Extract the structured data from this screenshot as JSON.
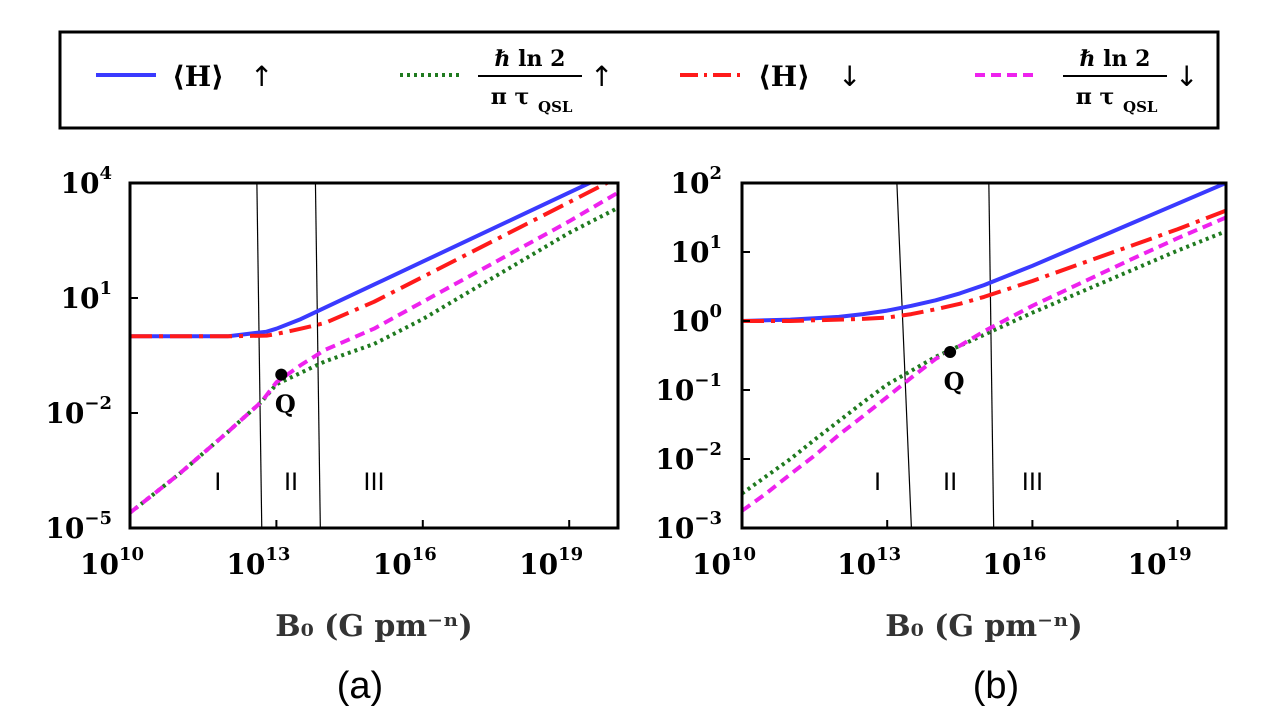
{
  "legend": {
    "items": [
      {
        "series": "H_up",
        "label": "⟨H⟩",
        "arrow": "↑",
        "color": "#3a3aff",
        "dash": "solid"
      },
      {
        "series": "QSL_up",
        "frac_top": "ℏ ln 2",
        "frac_bottom": "π τ",
        "frac_sub": "QSL",
        "arrow": "↑",
        "color": "#1f7a1f",
        "dash": "dotted"
      },
      {
        "series": "H_down",
        "label": "⟨H⟩",
        "arrow": "↓",
        "color": "#ff1a1a",
        "dash": "dashdot"
      },
      {
        "series": "QSL_down",
        "frac_top": "ℏ ln 2",
        "frac_bottom": "π τ",
        "frac_sub": "QSL",
        "arrow": "↓",
        "color": "#ee22ee",
        "dash": "dashed"
      }
    ]
  },
  "chart_data": [
    {
      "type": "line",
      "panel": "(a)",
      "xlabel": "B₀ (G pm⁻ⁿ)",
      "xscale": "log",
      "yscale": "log",
      "xlim_exp": [
        10,
        20
      ],
      "ylim_exp": [
        -5,
        4
      ],
      "xticks": [
        {
          "base": "10",
          "exp": "10",
          "v": 10
        },
        {
          "base": "10",
          "exp": "13",
          "v": 13
        },
        {
          "base": "10",
          "exp": "16",
          "v": 16
        },
        {
          "base": "10",
          "exp": "19",
          "v": 19
        }
      ],
      "yticks": [
        {
          "base": "10",
          "exp": "4",
          "v": 4
        },
        {
          "base": "10",
          "exp": "1",
          "v": 1
        },
        {
          "base": "10",
          "exp": "−2",
          "v": -2
        },
        {
          "base": "10",
          "exp": "−5",
          "v": -5
        }
      ],
      "boundaries": [
        {
          "x_bottom": 12.7,
          "x_top": 12.6
        },
        {
          "x_bottom": 13.9,
          "x_top": 13.8
        }
      ],
      "regions": [
        {
          "label": "I",
          "x": 11.8
        },
        {
          "label": "II",
          "x": 13.3
        },
        {
          "label": "III",
          "x": 15.0
        }
      ],
      "point": {
        "label": "Q",
        "x": 13.1,
        "y": -1.0
      },
      "series": [
        {
          "name": "H_up",
          "x": [
            10,
            11,
            12,
            12.8,
            13.0,
            13.5,
            14,
            15,
            16,
            17,
            18,
            19,
            20
          ],
          "y": [
            0.0,
            0.0,
            0.0,
            0.12,
            0.2,
            0.45,
            0.75,
            1.35,
            1.95,
            2.55,
            3.15,
            3.75,
            4.35
          ]
        },
        {
          "name": "H_down",
          "x": [
            10,
            11,
            12,
            12.8,
            13.0,
            13.5,
            14,
            15,
            16,
            17,
            18,
            19,
            20
          ],
          "y": [
            0.0,
            0.0,
            0.0,
            0.02,
            0.06,
            0.2,
            0.35,
            0.9,
            1.55,
            2.2,
            2.85,
            3.5,
            4.15
          ]
        },
        {
          "name": "QSL_up",
          "x": [
            10,
            11,
            12,
            12.7,
            13.0,
            13.5,
            14,
            15,
            16,
            17,
            18,
            19,
            20
          ],
          "y": [
            -4.6,
            -3.6,
            -2.5,
            -1.7,
            -1.25,
            -0.95,
            -0.65,
            -0.2,
            0.45,
            1.2,
            1.95,
            2.7,
            3.35
          ]
        },
        {
          "name": "QSL_down",
          "x": [
            10,
            11,
            12,
            12.7,
            13.0,
            13.5,
            14,
            15,
            16,
            17,
            18,
            19,
            20
          ],
          "y": [
            -4.6,
            -3.6,
            -2.5,
            -1.7,
            -1.2,
            -0.75,
            -0.35,
            0.2,
            0.9,
            1.6,
            2.3,
            3.0,
            3.75
          ]
        }
      ]
    },
    {
      "type": "line",
      "panel": "(b)",
      "xlabel": "B₀ (G pm⁻ⁿ)",
      "xscale": "log",
      "yscale": "log",
      "xlim_exp": [
        10,
        20
      ],
      "ylim_exp": [
        -3,
        2
      ],
      "xticks": [
        {
          "base": "10",
          "exp": "10",
          "v": 10
        },
        {
          "base": "10",
          "exp": "13",
          "v": 13
        },
        {
          "base": "10",
          "exp": "16",
          "v": 16
        },
        {
          "base": "10",
          "exp": "19",
          "v": 19
        }
      ],
      "yticks": [
        {
          "base": "10",
          "exp": "2",
          "v": 2
        },
        {
          "base": "10",
          "exp": "1",
          "v": 1
        },
        {
          "base": "10",
          "exp": "0",
          "v": 0
        },
        {
          "base": "10",
          "exp": "−1",
          "v": -1
        },
        {
          "base": "10",
          "exp": "−2",
          "v": -2
        },
        {
          "base": "10",
          "exp": "−3",
          "v": -3
        }
      ],
      "boundaries": [
        {
          "x_bottom": 13.5,
          "x_top": 13.2
        },
        {
          "x_bottom": 15.2,
          "x_top": 15.1
        }
      ],
      "regions": [
        {
          "label": "I",
          "x": 12.8
        },
        {
          "label": "II",
          "x": 14.3
        },
        {
          "label": "III",
          "x": 16.0
        }
      ],
      "point": {
        "label": "Q",
        "x": 14.3,
        "y": -0.45
      },
      "series": [
        {
          "name": "H_up",
          "x": [
            10,
            11,
            12,
            12.5,
            13,
            13.5,
            14,
            14.5,
            15,
            16,
            17,
            18,
            19,
            20
          ],
          "y": [
            0.0,
            0.02,
            0.06,
            0.1,
            0.15,
            0.22,
            0.3,
            0.4,
            0.52,
            0.8,
            1.1,
            1.4,
            1.7,
            2.0
          ]
        },
        {
          "name": "H_down",
          "x": [
            10,
            11,
            12,
            12.5,
            13,
            13.5,
            14,
            14.5,
            15,
            16,
            17,
            18,
            19,
            20
          ],
          "y": [
            0.0,
            0.0,
            0.02,
            0.03,
            0.05,
            0.1,
            0.17,
            0.25,
            0.35,
            0.58,
            0.83,
            1.08,
            1.33,
            1.6
          ]
        },
        {
          "name": "QSL_up",
          "x": [
            10,
            10.5,
            11,
            11.5,
            12,
            12.5,
            13,
            13.5,
            14,
            14.5,
            15,
            16,
            17,
            18,
            19,
            20
          ],
          "y": [
            -2.5,
            -2.25,
            -2.0,
            -1.72,
            -1.45,
            -1.18,
            -0.92,
            -0.72,
            -0.52,
            -0.36,
            -0.2,
            0.12,
            0.42,
            0.72,
            1.02,
            1.3
          ]
        },
        {
          "name": "QSL_down",
          "x": [
            10,
            10.5,
            11,
            11.5,
            12,
            12.5,
            13,
            13.5,
            14,
            14.5,
            15,
            16,
            17,
            18,
            19,
            20
          ],
          "y": [
            -2.75,
            -2.5,
            -2.22,
            -1.95,
            -1.65,
            -1.38,
            -1.1,
            -0.82,
            -0.55,
            -0.36,
            -0.15,
            0.22,
            0.55,
            0.88,
            1.2,
            1.5
          ]
        }
      ]
    }
  ]
}
